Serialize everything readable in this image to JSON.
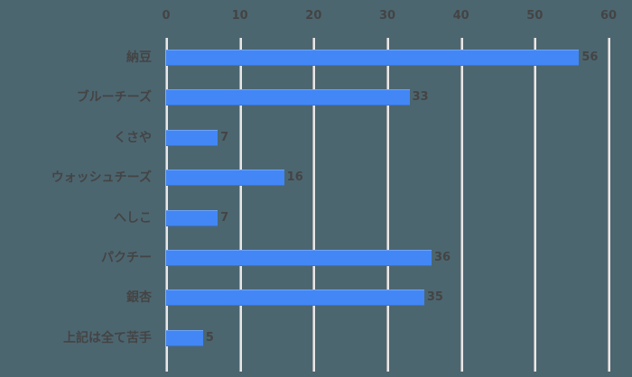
{
  "chart_data": {
    "type": "bar",
    "orientation": "horizontal",
    "title": "",
    "xlabel": "",
    "ylabel": "",
    "categories": [
      "納豆",
      "ブルーチーズ",
      "くさや",
      "ウォッシュチーズ",
      "へしこ",
      "パクチー",
      "銀杏",
      "上記は全て苦手"
    ],
    "values": [
      56,
      33,
      7,
      16,
      7,
      36,
      35,
      5
    ],
    "xlim": [
      0,
      60
    ],
    "ticks": [
      "0",
      "10",
      "20",
      "30",
      "40",
      "50",
      "60"
    ],
    "tick_values": [
      0,
      10,
      20,
      30,
      40,
      50,
      60
    ],
    "grid": true,
    "axis_position": "top",
    "data_labels": true,
    "bar_color": "#4287f5",
    "background": "#4c6670"
  }
}
